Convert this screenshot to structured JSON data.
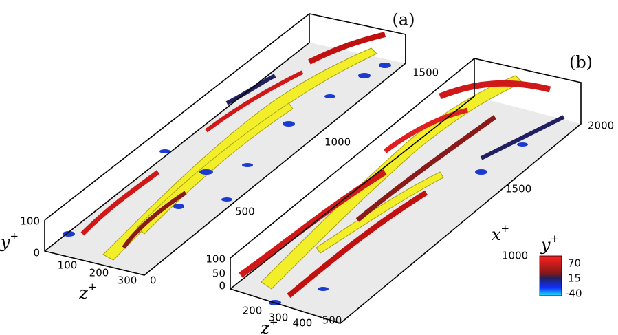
{
  "panels": [
    {
      "label": "(a)",
      "axes": {
        "y": {
          "title": "y",
          "sup": "+",
          "ticks": [
            0,
            100
          ]
        },
        "z": {
          "title": "z",
          "sup": "+",
          "ticks": [
            100,
            200,
            300
          ]
        },
        "x": {
          "ticks": [
            0,
            500,
            1000,
            1500
          ]
        }
      }
    },
    {
      "label": "(b)",
      "axes": {
        "y": {
          "ticks": [
            0,
            50,
            100
          ]
        },
        "z": {
          "title": "z",
          "sup": "+",
          "ticks": [
            200,
            300,
            400,
            500
          ]
        },
        "x": {
          "title": "x",
          "sup": "+",
          "ticks": [
            1000,
            1500,
            2000
          ]
        }
      }
    }
  ],
  "colorbar": {
    "title": "y",
    "sup": "+",
    "labels": [
      70,
      15,
      -40
    ]
  }
}
